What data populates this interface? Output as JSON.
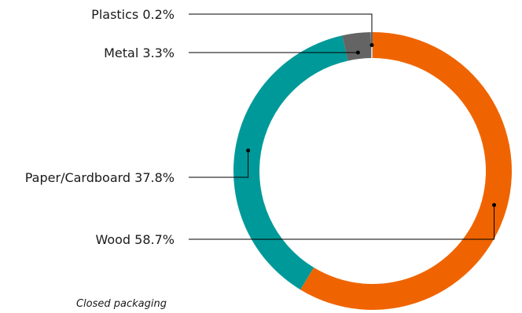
{
  "chart_data": {
    "type": "pie",
    "variant": "donut",
    "caption": "Closed packaging",
    "slices": [
      {
        "label": "Wood 58.7%",
        "name": "Wood",
        "value": 58.7,
        "color": "#ef6400"
      },
      {
        "label": "Paper/Cardboard 37.8%",
        "name": "Paper/Cardboard",
        "value": 37.8,
        "color": "#009999"
      },
      {
        "label": "Metal 3.3%",
        "name": "Metal",
        "value": 3.3,
        "color": "#646464"
      },
      {
        "label": "Plastics 0.2%",
        "name": "Plastics",
        "value": 0.2,
        "color": "#cccccc"
      }
    ],
    "legend": "left-callouts"
  }
}
